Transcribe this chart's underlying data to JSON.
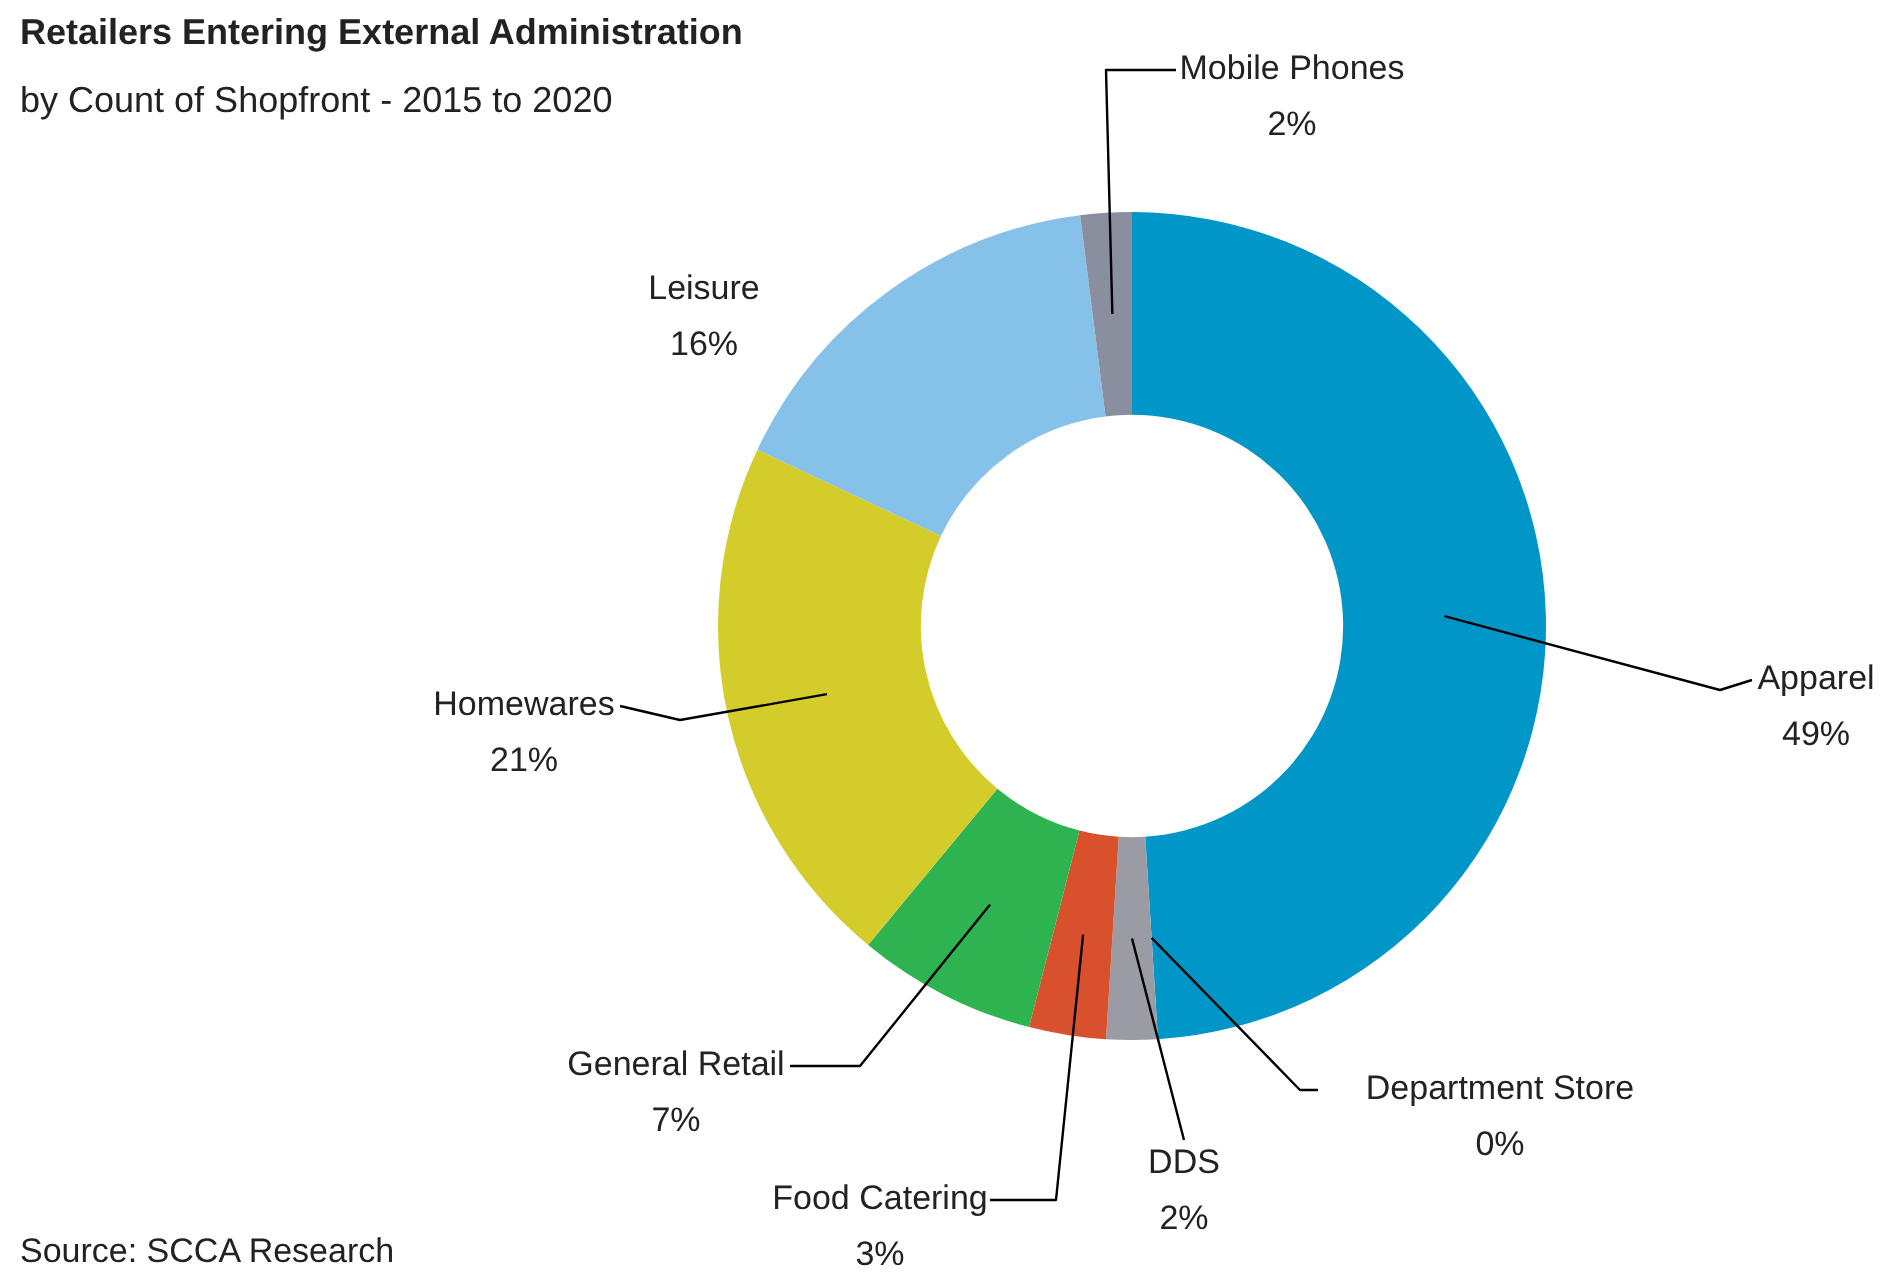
{
  "chart_data": {
    "type": "donut",
    "title": "Retailers Entering External Administration",
    "subtitle": "by Count of Shopfront - 2015 to 2020",
    "categories": [
      "Apparel",
      "Department Store",
      "DDS",
      "Food Catering",
      "General Retail",
      "Homewares",
      "Leisure",
      "Mobile Phones"
    ],
    "values": [
      49,
      0,
      2,
      3,
      7,
      21,
      16,
      2
    ],
    "colors": [
      "#0096c8",
      "#1f3a6e",
      "#9a9ba3",
      "#d9512c",
      "#2db34f",
      "#d4cc2a",
      "#85c1e9",
      "#8a8fa0"
    ],
    "value_labels": [
      "49%",
      "0%",
      "2%",
      "3%",
      "7%",
      "21%",
      "16%",
      "2%"
    ],
    "legend": false,
    "annotations": [
      "Source: SCCA Research"
    ]
  }
}
